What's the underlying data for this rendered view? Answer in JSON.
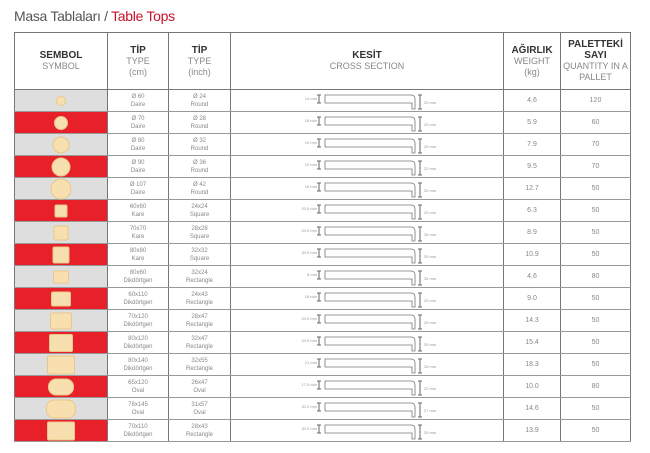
{
  "title": {
    "tr": "Masa Tablaları / ",
    "en": "Table Tops"
  },
  "headers": {
    "symbol": {
      "tr": "SEMBOL",
      "en": "SYMBOL"
    },
    "type_cm": {
      "tr": "TİP",
      "en": "TYPE",
      "unit": "(cm)"
    },
    "type_inch": {
      "tr": "TİP",
      "en": "TYPE",
      "unit": "(inch)"
    },
    "section": {
      "tr": "KESİT",
      "en": "CROSS SECTION"
    },
    "weight": {
      "tr": "AĞIRLIK",
      "en": "WEIGHT",
      "unit": "(kg)"
    },
    "pallet": {
      "tr": "PALETTEKİ SAYI",
      "en": "QUANTITY IN A PALLET"
    }
  },
  "colors": {
    "red": "#e8202a",
    "gray": "#dedede",
    "shape": "#f7dfb0",
    "title_accent": "#c8102e"
  },
  "rows": [
    {
      "shape": "circle",
      "cm": "Ø 60",
      "cm_t": "Daire",
      "in": "Ø 24",
      "in_t": "Round",
      "top": "14 mm",
      "side": "25 mm",
      "kg": "4.6",
      "qty": "120"
    },
    {
      "shape": "circle",
      "cm": "Ø 70",
      "cm_t": "Daire",
      "in": "Ø 28",
      "in_t": "Round",
      "top": "18 mm",
      "side": "25 mm",
      "kg": "5.9",
      "qty": "60"
    },
    {
      "shape": "circle",
      "cm": "Ø 80",
      "cm_t": "Daire",
      "in": "Ø 32",
      "in_t": "Round",
      "top": "10 mm",
      "side": "25 mm",
      "kg": "7.9",
      "qty": "70"
    },
    {
      "shape": "circle",
      "cm": "Ø 90",
      "cm_t": "Daire",
      "in": "Ø 36",
      "in_t": "Round",
      "top": "10 mm",
      "side": "22 mm",
      "kg": "9.5",
      "qty": "70"
    },
    {
      "shape": "circle",
      "cm": "Ø 107",
      "cm_t": "Daire",
      "in": "Ø 42",
      "in_t": "Round",
      "top": "18 mm",
      "side": "30 mm",
      "kg": "12.7",
      "qty": "50"
    },
    {
      "shape": "square",
      "cm": "60x60",
      "cm_t": "Kare",
      "in": "24x24",
      "in_t": "Square",
      "top": "20.5 mm",
      "side": "25 mm",
      "kg": "6.3",
      "qty": "50"
    },
    {
      "shape": "square",
      "cm": "70x70",
      "cm_t": "Kare",
      "in": "28x28",
      "in_t": "Square",
      "top": "20.5 mm",
      "side": "35 mm",
      "kg": "8.9",
      "qty": "50"
    },
    {
      "shape": "square",
      "cm": "80x80",
      "cm_t": "Kare",
      "in": "32x32",
      "in_t": "Square",
      "top": "30.5 mm",
      "side": "35 mm",
      "kg": "10.9",
      "qty": "50"
    },
    {
      "shape": "rect",
      "cm": "80x60",
      "cm_t": "Dikdörtgen",
      "in": "32x24",
      "in_t": "Rectangle",
      "top": "8 mm",
      "side": "35 mm",
      "kg": "4.6",
      "qty": "80"
    },
    {
      "shape": "rect",
      "cm": "60x110",
      "cm_t": "Dikdörtgen",
      "in": "24x43",
      "in_t": "Rectangle",
      "top": "18 mm",
      "side": "25 mm",
      "kg": "9.0",
      "qty": "50"
    },
    {
      "shape": "rect",
      "cm": "70x120",
      "cm_t": "Dikdörtgen",
      "in": "28x47",
      "in_t": "Rectangle",
      "top": "20.5 mm",
      "side": "25 mm",
      "kg": "14.3",
      "qty": "50"
    },
    {
      "shape": "rect",
      "cm": "80x120",
      "cm_t": "Dikdörtgen",
      "in": "32x47",
      "in_t": "Rectangle",
      "top": "20.5 mm",
      "side": "35 mm",
      "kg": "15.4",
      "qty": "50"
    },
    {
      "shape": "rect",
      "cm": "80x140",
      "cm_t": "Dikdörtgen",
      "in": "32x55",
      "in_t": "Rectangle",
      "top": "21 mm",
      "side": "28 mm",
      "kg": "18.3",
      "qty": "50"
    },
    {
      "shape": "oval",
      "cm": "65x120",
      "cm_t": "Oval",
      "in": "26x47",
      "in_t": "Oval",
      "top": "17.5 mm",
      "side": "22 mm",
      "kg": "10.0",
      "qty": "80"
    },
    {
      "shape": "oval",
      "cm": "78x145",
      "cm_t": "Oval",
      "in": "31x57",
      "in_t": "Oval",
      "top": "30.2 mm",
      "side": "27 mm",
      "kg": "14.6",
      "qty": "50"
    },
    {
      "shape": "rect",
      "cm": "70x110",
      "cm_t": "Dikdörtgen",
      "in": "28x43",
      "in_t": "Rectangle",
      "top": "30.2 mm",
      "side": "30 mm",
      "kg": "13.9",
      "qty": "50"
    }
  ]
}
